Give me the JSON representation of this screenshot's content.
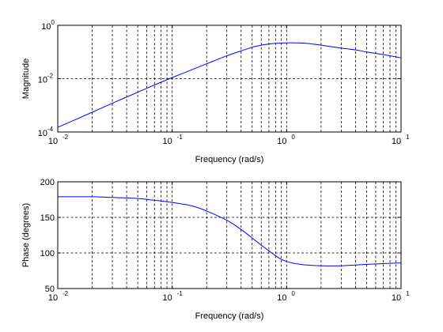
{
  "chart_data": [
    {
      "type": "line",
      "xlabel": "Frequency (rad/s)",
      "ylabel": "Magnitude",
      "x_scale": "log",
      "y_scale": "log",
      "xlim": [
        0.01,
        10
      ],
      "ylim": [
        0.0001,
        1
      ],
      "grid": true,
      "x_ticks": [
        {
          "base": "10",
          "exp": "-2"
        },
        {
          "base": "10",
          "exp": "-1"
        },
        {
          "base": "10",
          "exp": "0"
        },
        {
          "base": "10",
          "exp": "1"
        }
      ],
      "y_ticks": [
        {
          "value": 0.0001,
          "base": "10",
          "exp": "-4"
        },
        {
          "value": 0.01,
          "base": "10",
          "exp": "-2"
        },
        {
          "value": 1,
          "base": "10",
          "exp": "0"
        }
      ],
      "series": [
        {
          "color": "#0000ff",
          "x": [
            0.01,
            0.02,
            0.03,
            0.05,
            0.07,
            0.1,
            0.15,
            0.2,
            0.3,
            0.4,
            0.5,
            0.6,
            0.7,
            0.8,
            0.9,
            1.0,
            1.2,
            1.5,
            2,
            3,
            4,
            5,
            7,
            10
          ],
          "y": [
            0.00015,
            0.00055,
            0.0012,
            0.0031,
            0.0058,
            0.011,
            0.022,
            0.036,
            0.072,
            0.11,
            0.15,
            0.18,
            0.2,
            0.21,
            0.215,
            0.22,
            0.22,
            0.21,
            0.18,
            0.14,
            0.12,
            0.1,
            0.08,
            0.06
          ]
        }
      ]
    },
    {
      "type": "line",
      "xlabel": "Frequency (rad/s)",
      "ylabel": "Phase (degrees)",
      "x_scale": "log",
      "y_scale": "linear",
      "xlim": [
        0.01,
        10
      ],
      "ylim": [
        50,
        200
      ],
      "grid": true,
      "x_ticks": [
        {
          "base": "10",
          "exp": "-2"
        },
        {
          "base": "10",
          "exp": "-1"
        },
        {
          "base": "10",
          "exp": "0"
        },
        {
          "base": "10",
          "exp": "1"
        }
      ],
      "y_ticks": [
        {
          "value": 50,
          "label": "50"
        },
        {
          "value": 100,
          "label": "100"
        },
        {
          "value": 150,
          "label": "150"
        },
        {
          "value": 200,
          "label": "200"
        }
      ],
      "series": [
        {
          "color": "#0000ff",
          "x": [
            0.01,
            0.02,
            0.03,
            0.05,
            0.07,
            0.1,
            0.15,
            0.2,
            0.3,
            0.4,
            0.5,
            0.6,
            0.7,
            0.8,
            0.9,
            1.0,
            1.2,
            1.5,
            2,
            3,
            4,
            5,
            7,
            10
          ],
          "y": [
            179,
            179,
            178,
            176.5,
            174,
            171,
            166,
            159,
            146,
            133,
            121,
            111,
            103,
            96,
            91,
            88,
            85,
            83,
            82,
            82,
            83,
            84,
            85,
            86
          ]
        }
      ]
    }
  ]
}
